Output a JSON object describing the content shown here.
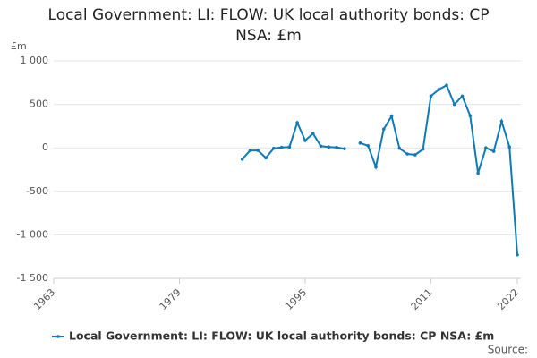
{
  "chart_data": {
    "type": "line",
    "title": "Local Government: LI: FLOW: UK local authority bonds: CP NSA: £m",
    "y_unit": "£m",
    "source": "Source:",
    "x": [
      1987,
      1988,
      1989,
      1990,
      1991,
      1992,
      1993,
      1994,
      1995,
      1996,
      1997,
      1998,
      1999,
      2000,
      2001,
      2002,
      2003,
      2004,
      2005,
      2006,
      2007,
      2008,
      2009,
      2010,
      2011,
      2012,
      2013,
      2014,
      2015,
      2016,
      2017,
      2018,
      2019,
      2020,
      2021,
      2022
    ],
    "series": [
      {
        "name": "Local Government: LI: FLOW: UK local authority bonds: CP NSA: £m",
        "color": "#0f7ab8",
        "values": [
          -130,
          -30,
          -30,
          -115,
          -5,
          5,
          10,
          290,
          85,
          165,
          20,
          10,
          5,
          -10,
          null,
          55,
          25,
          -220,
          215,
          365,
          -5,
          -70,
          -80,
          -15,
          595,
          670,
          720,
          500,
          595,
          370,
          -290,
          0,
          -40,
          305,
          10,
          -1230
        ]
      }
    ],
    "xlim": [
      1963,
      2022
    ],
    "xticks": [
      1963,
      1979,
      1995,
      2011,
      2022
    ],
    "ylim": [
      -1500,
      1000
    ],
    "yticks": [
      {
        "value": -1500,
        "label": "-1 500"
      },
      {
        "value": -1000,
        "label": "-1 000"
      },
      {
        "value": -500,
        "label": "-500"
      },
      0,
      500,
      {
        "value": 1000,
        "label": "1 000"
      }
    ],
    "grid": true
  }
}
